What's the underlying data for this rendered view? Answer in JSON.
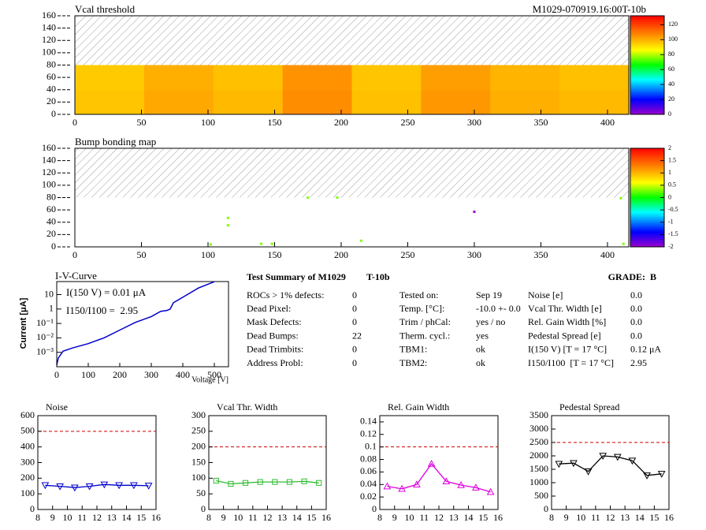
{
  "chart_data": [
    {
      "type": "heatmap",
      "title": "Vcal threshold",
      "label": "M1029-070919.16:00T-10b",
      "xlim": [
        0,
        416
      ],
      "ylim": [
        0,
        160
      ],
      "xticks": [
        0,
        50,
        100,
        150,
        200,
        250,
        300,
        350,
        400
      ],
      "yticks": [
        0,
        20,
        40,
        60,
        80,
        100,
        120,
        140,
        160
      ],
      "xbins": [
        0,
        52,
        104,
        156,
        208,
        260,
        312,
        364,
        416
      ],
      "ybins": [
        0,
        40,
        80
      ],
      "z": [
        [
          96,
          101,
          98,
          106,
          97,
          104,
          100,
          98
        ],
        [
          95,
          100,
          97,
          105,
          96,
          103,
          99,
          97
        ]
      ],
      "zlim": [
        0,
        132
      ],
      "zticks": [
        0,
        20,
        40,
        60,
        80,
        100,
        120
      ]
    },
    {
      "type": "scatter-map",
      "title": "Bump bonding map",
      "xlim": [
        0,
        416
      ],
      "ylim": [
        0,
        160
      ],
      "xticks": [
        0,
        50,
        100,
        150,
        200,
        250,
        300,
        350,
        400
      ],
      "yticks": [
        0,
        20,
        40,
        60,
        80,
        100,
        120,
        140,
        160
      ],
      "x": [
        175,
        115,
        115,
        102,
        148,
        140,
        215,
        197,
        300,
        410,
        412
      ],
      "y": [
        80,
        47,
        35,
        4,
        5,
        5,
        10,
        80,
        57,
        79,
        5
      ],
      "z": [
        0.3,
        0.3,
        0.3,
        0.3,
        0.3,
        0.3,
        0.3,
        0.3,
        -2,
        0.3,
        0.3
      ],
      "zlim": [
        -2,
        2
      ],
      "zticks": [
        -2,
        -1.5,
        -1,
        -0.5,
        0,
        0.5,
        1,
        1.5,
        2
      ]
    },
    {
      "type": "line",
      "log_y": true,
      "title": "I-V-Curve",
      "x_label": "Voltage [V]",
      "y_label": "Current [μA]",
      "annotations": [
        "I(150 V) = 0.01 μA",
        "I150/I100 =  2.95"
      ],
      "color": "#0000cc",
      "xlim": [
        0,
        545
      ],
      "ylim": [
        0.0001,
        80
      ],
      "xticks": [
        0,
        100,
        200,
        300,
        400,
        500
      ],
      "yticks": [
        {
          "value": 0.001,
          "label": "10⁻³"
        },
        {
          "value": 0.01,
          "label": "10⁻²"
        },
        {
          "value": 0.1,
          "label": "10⁻¹"
        },
        1,
        10
      ],
      "x": [
        0,
        5,
        20,
        50,
        100,
        150,
        200,
        250,
        300,
        330,
        350,
        360,
        370,
        400,
        450,
        500
      ],
      "y": [
        0.00013,
        0.0004,
        0.0012,
        0.002,
        0.004,
        0.01,
        0.035,
        0.12,
        0.3,
        0.7,
        0.8,
        1,
        2.7,
        6.5,
        29,
        78
      ]
    },
    {
      "type": "line",
      "title": "Noise",
      "color": "#0000cc",
      "marker": "triangle-down",
      "threshold": 500,
      "xlim": [
        8,
        16
      ],
      "ylim": [
        0,
        600
      ],
      "xticks": [
        8,
        9,
        10,
        11,
        12,
        13,
        14,
        15,
        16
      ],
      "yticks": [
        0,
        100,
        200,
        300,
        400,
        500,
        600
      ],
      "x": [
        8.5,
        9.5,
        10.5,
        11.5,
        12.5,
        13.5,
        14.5,
        15.5
      ],
      "values": [
        155,
        148,
        140,
        148,
        160,
        155,
        155,
        152
      ]
    },
    {
      "type": "line",
      "title": "Vcal Thr. Width",
      "color": "#33bb33",
      "marker": "square",
      "threshold": 200,
      "xlim": [
        8,
        16
      ],
      "ylim": [
        0,
        300
      ],
      "xticks": [
        8,
        9,
        10,
        11,
        12,
        13,
        14,
        15,
        16
      ],
      "yticks": [
        0,
        50,
        100,
        150,
        200,
        250,
        300
      ],
      "x": [
        8.5,
        9.5,
        10.5,
        11.5,
        12.5,
        13.5,
        14.5,
        15.5
      ],
      "values": [
        92,
        82,
        85,
        88,
        88,
        88,
        90,
        85
      ]
    },
    {
      "type": "line",
      "title": "Rel. Gain Width",
      "color": "#dd00dd",
      "marker": "triangle-up",
      "threshold": 0.1,
      "xlim": [
        8,
        16
      ],
      "ylim": [
        0,
        0.15
      ],
      "xticks": [
        8,
        9,
        10,
        11,
        12,
        13,
        14,
        15,
        16
      ],
      "yticks": [
        0,
        0.02,
        0.04,
        0.06,
        0.08,
        0.1,
        0.12,
        0.14
      ],
      "x": [
        8.5,
        9.5,
        10.5,
        11.5,
        12.5,
        13.5,
        14.5,
        15.5
      ],
      "values": [
        0.037,
        0.033,
        0.04,
        0.073,
        0.045,
        0.039,
        0.035,
        0.028
      ]
    },
    {
      "type": "line",
      "title": "Pedestal Spread",
      "color": "#000000",
      "marker": "triangle-down",
      "threshold": 2500,
      "xlim": [
        8,
        16
      ],
      "ylim": [
        0,
        3500
      ],
      "xticks": [
        8,
        9,
        10,
        11,
        12,
        13,
        14,
        15,
        16
      ],
      "yticks": [
        0,
        500,
        1000,
        1500,
        2000,
        2500,
        3000,
        3500
      ],
      "x": [
        8.5,
        9.5,
        10.5,
        11.5,
        12.5,
        13.5,
        14.5,
        15.5
      ],
      "values": [
        1700,
        1730,
        1420,
        2000,
        1960,
        1820,
        1270,
        1330
      ]
    }
  ],
  "summary": {
    "title": "Test Summary of M1029",
    "module": "T-10b",
    "grade": "GRADE:  B",
    "columns": [
      [
        {
          "label": "ROCs > 1% defects:",
          "value": "0"
        },
        {
          "label": "Dead Pixel:",
          "value": "0"
        },
        {
          "label": "Mask Defects:",
          "value": "0"
        },
        {
          "label": "Dead Bumps:",
          "value": "22"
        },
        {
          "label": "Dead Trimbits:",
          "value": "0"
        },
        {
          "label": "Address Probl:",
          "value": "0"
        }
      ],
      [
        {
          "label": "Tested on:",
          "value": "Sep 19"
        },
        {
          "label": "Temp. [°C]:",
          "value": "-10.0 +- 0.0"
        },
        {
          "label": "Trim / phCal:",
          "value": "yes / no"
        },
        {
          "label": "Therm. cycl.:",
          "value": "yes"
        },
        {
          "label": "TBM1:",
          "value": "ok"
        },
        {
          "label": "TBM2:",
          "value": "ok"
        }
      ],
      [
        {
          "label": "Noise [e]",
          "value": "0.0"
        },
        {
          "label": "Vcal Thr. Width [e]",
          "value": "0.0"
        },
        {
          "label": "Rel. Gain Width [%]",
          "value": "0.0"
        },
        {
          "label": "Pedestal Spread [e]",
          "value": "0.0"
        },
        {
          "label": "I(150 V) [T = 17 °C]",
          "value": "0.12 μA"
        },
        {
          "label": "I150/I100  [T = 17 °C]",
          "value": "2.95"
        }
      ]
    ]
  }
}
